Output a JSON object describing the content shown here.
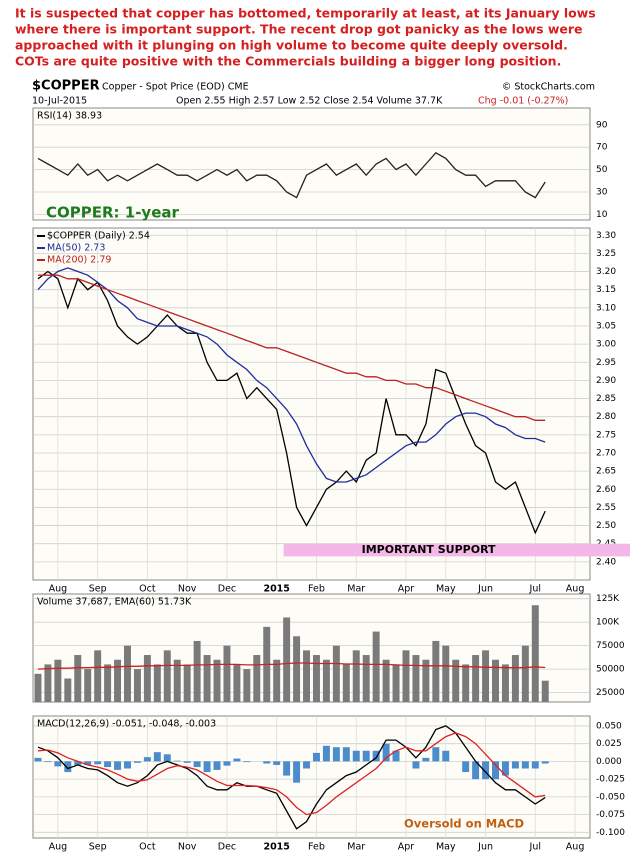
{
  "header": {
    "commentary": [
      "It is suspected that copper has bottomed, temporarily at least, at its January lows",
      "where there is important support. The recent drop got panicky as the lows were",
      "approached with it plunging on high volume to become quite deeply oversold.",
      "COTs are quite positive with the Commercials building a bigger long position."
    ],
    "symbol": "$COPPER",
    "description": "Copper - Spot Price (EOD) CME",
    "source": "© StockCharts.com",
    "date": "10-Jul-2015",
    "quote": "Open 2.55 High 2.57 Low 2.52 Close 2.54 Volume 37.7K",
    "change": "Chg -0.01 (-0.27%)"
  },
  "chart_data": [
    {
      "type": "line",
      "label": "RSI(14) 38.93",
      "ylim": [
        5,
        105
      ],
      "yticks": [
        10,
        30,
        50,
        70,
        90
      ],
      "grid": true,
      "series": [
        {
          "color": "#222222",
          "values": [
            60,
            55,
            50,
            45,
            55,
            45,
            50,
            40,
            45,
            40,
            45,
            50,
            55,
            50,
            45,
            45,
            40,
            45,
            50,
            45,
            50,
            40,
            45,
            45,
            40,
            30,
            25,
            45,
            50,
            55,
            45,
            50,
            55,
            45,
            55,
            60,
            50,
            55,
            45,
            55,
            65,
            60,
            50,
            45,
            45,
            35,
            40,
            40,
            40,
            30,
            25,
            38.93,
            null,
            null,
            null,
            null
          ]
        }
      ]
    },
    {
      "type": "line",
      "note": "COPPER: 1-year",
      "ylim": [
        2.35,
        3.32
      ],
      "yticks": [
        {
          "value": 2.4,
          "label": "2.40"
        },
        {
          "value": 2.45,
          "label": "2.45"
        },
        {
          "value": 2.5,
          "label": "2.50"
        },
        {
          "value": 2.55,
          "label": "2.55"
        },
        {
          "value": 2.6,
          "label": "2.60"
        },
        {
          "value": 2.65,
          "label": "2.65"
        },
        {
          "value": 2.7,
          "label": "2.70"
        },
        {
          "value": 2.75,
          "label": "2.75"
        },
        {
          "value": 2.8,
          "label": "2.80"
        },
        {
          "value": 2.85,
          "label": "2.85"
        },
        {
          "value": 2.9,
          "label": "2.90"
        },
        {
          "value": 2.95,
          "label": "2.95"
        },
        {
          "value": 3.0,
          "label": "3.00"
        },
        {
          "value": 3.05,
          "label": "3.05"
        },
        {
          "value": 3.1,
          "label": "3.10"
        },
        {
          "value": 3.15,
          "label": "3.15"
        },
        {
          "value": 3.2,
          "label": "3.20"
        },
        {
          "value": 3.25,
          "label": "3.25"
        },
        {
          "value": 3.3,
          "label": "3.30"
        }
      ],
      "grid": true,
      "categories": [
        null,
        null,
        "Aug",
        null,
        null,
        null,
        "Sep",
        null,
        null,
        null,
        null,
        "Oct",
        null,
        null,
        null,
        "Nov",
        null,
        null,
        null,
        "Dec",
        null,
        null,
        null,
        null,
        "2015",
        null,
        null,
        null,
        "Feb",
        null,
        null,
        null,
        "Mar",
        null,
        null,
        null,
        null,
        "Apr",
        null,
        null,
        null,
        "May",
        null,
        null,
        null,
        "Jun",
        null,
        null,
        null,
        null,
        "Jul",
        null,
        null,
        null,
        "Aug",
        null
      ],
      "annotations": [
        {
          "text": "IMPORTANT SUPPORT",
          "range": [
            2.415,
            2.45
          ],
          "color": "#f4b8e8"
        }
      ],
      "series": [
        {
          "name": "$COPPER (Daily) 2.54",
          "color": "#000000",
          "values": [
            3.18,
            3.2,
            3.18,
            3.1,
            3.18,
            3.15,
            3.17,
            3.12,
            3.05,
            3.02,
            3.0,
            3.02,
            3.05,
            3.08,
            3.05,
            3.03,
            3.03,
            2.95,
            2.9,
            2.9,
            2.92,
            2.85,
            2.88,
            2.85,
            2.82,
            2.7,
            2.55,
            2.5,
            2.55,
            2.6,
            2.62,
            2.65,
            2.62,
            2.68,
            2.7,
            2.85,
            2.75,
            2.75,
            2.72,
            2.78,
            2.93,
            2.92,
            2.85,
            2.78,
            2.72,
            2.7,
            2.62,
            2.6,
            2.62,
            2.55,
            2.48,
            2.54,
            null,
            null,
            null,
            null
          ]
        },
        {
          "name": "MA(50) 2.73",
          "color": "#1f2f9a",
          "values": [
            3.15,
            3.18,
            3.2,
            3.21,
            3.2,
            3.19,
            3.17,
            3.15,
            3.12,
            3.1,
            3.07,
            3.06,
            3.05,
            3.05,
            3.05,
            3.04,
            3.03,
            3.02,
            3.0,
            2.97,
            2.95,
            2.93,
            2.9,
            2.88,
            2.85,
            2.82,
            2.78,
            2.72,
            2.67,
            2.63,
            2.62,
            2.62,
            2.63,
            2.64,
            2.66,
            2.68,
            2.7,
            2.72,
            2.73,
            2.73,
            2.75,
            2.78,
            2.8,
            2.81,
            2.81,
            2.8,
            2.78,
            2.77,
            2.75,
            2.74,
            2.74,
            2.73,
            null,
            null,
            null,
            null
          ]
        },
        {
          "name": "MA(200) 2.79",
          "color": "#bb2222",
          "values": [
            3.19,
            3.19,
            3.19,
            3.18,
            3.18,
            3.17,
            3.16,
            3.15,
            3.14,
            3.13,
            3.12,
            3.11,
            3.1,
            3.09,
            3.08,
            3.07,
            3.06,
            3.05,
            3.04,
            3.03,
            3.02,
            3.01,
            3.0,
            2.99,
            2.99,
            2.98,
            2.97,
            2.96,
            2.95,
            2.94,
            2.93,
            2.92,
            2.92,
            2.91,
            2.91,
            2.9,
            2.9,
            2.89,
            2.89,
            2.88,
            2.88,
            2.87,
            2.86,
            2.85,
            2.84,
            2.83,
            2.82,
            2.81,
            2.8,
            2.8,
            2.79,
            2.79,
            null,
            null,
            null,
            null
          ]
        }
      ]
    },
    {
      "type": "combo",
      "label": "Volume 37,687, EMA(60) 51.73K",
      "ylim": [
        15000,
        130000
      ],
      "yticks": [
        25000,
        50000,
        75000,
        {
          "value": 100000,
          "label": "100K"
        },
        {
          "value": 125000,
          "label": "125K"
        }
      ],
      "grid": true,
      "series": [
        {
          "type": "bar",
          "color": "#7a7a7a",
          "values": [
            45000,
            55000,
            60000,
            40000,
            65000,
            50000,
            70000,
            55000,
            60000,
            75000,
            50000,
            65000,
            55000,
            70000,
            60000,
            55000,
            80000,
            65000,
            60000,
            75000,
            55000,
            50000,
            65000,
            95000,
            60000,
            105000,
            85000,
            70000,
            65000,
            60000,
            75000,
            55000,
            70000,
            65000,
            90000,
            60000,
            55000,
            70000,
            65000,
            60000,
            80000,
            75000,
            60000,
            55000,
            65000,
            70000,
            60000,
            55000,
            65000,
            75000,
            118000,
            37687,
            null,
            null,
            null,
            null
          ]
        },
        {
          "type": "line",
          "color": "#cc2222",
          "values": [
            50000,
            50500,
            51000,
            51000,
            51500,
            51500,
            52000,
            52000,
            52500,
            53000,
            53000,
            53500,
            53500,
            54000,
            54000,
            54000,
            54500,
            54500,
            55000,
            55000,
            55000,
            54500,
            54500,
            55000,
            55000,
            56000,
            56500,
            56500,
            56000,
            56000,
            56000,
            55500,
            55500,
            55000,
            55000,
            55000,
            54500,
            54000,
            54000,
            53500,
            53500,
            53500,
            53000,
            52500,
            52500,
            52000,
            52000,
            51500,
            51500,
            51500,
            52500,
            51730,
            null,
            null,
            null,
            null
          ]
        }
      ]
    },
    {
      "type": "combo",
      "label": "MACD(12,26,9) -0.051, -0.048, -0.003",
      "note": "Oversold on MACD",
      "ylim": [
        -0.108,
        0.064
      ],
      "yticks": [
        {
          "value": 0.05,
          "label": "0.050"
        },
        {
          "value": 0.025,
          "label": "0.025"
        },
        {
          "value": 0,
          "label": "0.000"
        },
        {
          "value": -0.025,
          "label": "-0.025"
        },
        {
          "value": -0.05,
          "label": "-0.050"
        },
        {
          "value": -0.075,
          "label": "-0.075"
        },
        {
          "value": -0.1,
          "label": "-0.100"
        }
      ],
      "grid": true,
      "categories": [
        null,
        null,
        "Aug",
        null,
        null,
        null,
        "Sep",
        null,
        null,
        null,
        null,
        "Oct",
        null,
        null,
        null,
        "Nov",
        null,
        null,
        null,
        "Dec",
        null,
        null,
        null,
        null,
        "2015",
        null,
        null,
        null,
        "Feb",
        null,
        null,
        null,
        "Mar",
        null,
        null,
        null,
        null,
        "Apr",
        null,
        null,
        null,
        "May",
        null,
        null,
        null,
        "Jun",
        null,
        null,
        null,
        null,
        "Jul",
        null,
        null,
        null,
        "Aug",
        null
      ],
      "series": [
        {
          "type": "bar",
          "color": "#4a8ccc",
          "values": [
            0.005,
            -0.001,
            -0.007,
            -0.015,
            -0.005,
            -0.005,
            -0.004,
            -0.008,
            -0.012,
            -0.01,
            -0.002,
            0.006,
            0.013,
            0.01,
            0.001,
            -0.002,
            -0.008,
            -0.015,
            -0.012,
            -0.006,
            0.004,
            -0.001,
            0,
            -0.003,
            -0.005,
            -0.02,
            -0.03,
            -0.01,
            0.012,
            0.022,
            0.02,
            0.02,
            0.015,
            0.015,
            0.015,
            0.025,
            0.015,
            0,
            -0.01,
            0.005,
            0.02,
            0.015,
            0,
            -0.015,
            -0.025,
            -0.025,
            -0.025,
            -0.02,
            -0.01,
            -0.01,
            -0.01,
            -0.003,
            null,
            null,
            null,
            null
          ]
        },
        {
          "type": "line",
          "color": "#000000",
          "values": [
            0.02,
            0.015,
            0.005,
            -0.01,
            -0.005,
            -0.01,
            -0.012,
            -0.02,
            -0.03,
            -0.035,
            -0.03,
            -0.02,
            -0.005,
            0,
            -0.005,
            -0.01,
            -0.02,
            -0.035,
            -0.04,
            -0.04,
            -0.03,
            -0.035,
            -0.035,
            -0.04,
            -0.045,
            -0.07,
            -0.095,
            -0.085,
            -0.06,
            -0.04,
            -0.03,
            -0.02,
            -0.015,
            -0.005,
            0.005,
            0.03,
            0.03,
            0.02,
            0.005,
            0.02,
            0.045,
            0.05,
            0.04,
            0.02,
            0,
            -0.015,
            -0.03,
            -0.04,
            -0.04,
            -0.05,
            -0.06,
            -0.051,
            null,
            null,
            null,
            null
          ]
        },
        {
          "type": "line",
          "color": "#dd2222",
          "values": [
            0.015,
            0.016,
            0.012,
            0.005,
            0,
            -0.005,
            -0.008,
            -0.012,
            -0.018,
            -0.025,
            -0.028,
            -0.026,
            -0.018,
            -0.01,
            -0.006,
            -0.008,
            -0.012,
            -0.02,
            -0.028,
            -0.034,
            -0.034,
            -0.034,
            -0.035,
            -0.037,
            -0.04,
            -0.05,
            -0.065,
            -0.075,
            -0.072,
            -0.062,
            -0.05,
            -0.04,
            -0.03,
            -0.02,
            -0.01,
            0.005,
            0.015,
            0.02,
            0.015,
            0.015,
            0.025,
            0.035,
            0.04,
            0.035,
            0.025,
            0.01,
            -0.005,
            -0.02,
            -0.03,
            -0.04,
            -0.05,
            -0.048,
            null,
            null,
            null,
            null
          ]
        }
      ]
    }
  ]
}
